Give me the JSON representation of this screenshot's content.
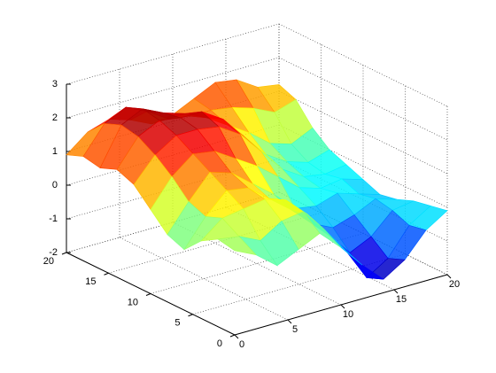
{
  "chart_data": {
    "type": "mesh",
    "x": [
      0,
      2,
      4,
      6,
      8,
      10,
      12,
      14,
      16,
      18,
      20
    ],
    "y": [
      0,
      2,
      4,
      6,
      8,
      10,
      12,
      14,
      16,
      18,
      20
    ],
    "z": [
      [
        0.5,
        0.2,
        -0.3,
        0.0,
        0.3,
        -0.3,
        -1.0,
        -1.6,
        -1.2,
        -0.5,
        -0.1
      ],
      [
        0.6,
        0.5,
        0.2,
        0.6,
        0.7,
        0.0,
        -0.8,
        -1.8,
        -1.4,
        -0.6,
        -0.2
      ],
      [
        0.3,
        0.8,
        0.9,
        1.0,
        0.8,
        0.2,
        -0.6,
        -1.3,
        -1.0,
        -0.4,
        -0.3
      ],
      [
        -0.2,
        0.6,
        1.2,
        1.1,
        0.6,
        0.1,
        -0.5,
        -0.8,
        -0.6,
        -0.3,
        -0.5
      ],
      [
        0.0,
        0.8,
        1.5,
        1.3,
        0.8,
        0.3,
        -0.3,
        -0.4,
        -0.2,
        -0.4,
        -0.6
      ],
      [
        0.5,
        1.3,
        1.8,
        1.7,
        1.3,
        0.9,
        0.4,
        -0.1,
        -0.3,
        -0.2,
        -0.4
      ],
      [
        1.0,
        1.7,
        2.1,
        2.1,
        2.0,
        1.6,
        0.9,
        0.2,
        -0.2,
        -0.3,
        -0.2
      ],
      [
        1.2,
        2.0,
        2.3,
        2.2,
        2.2,
        1.8,
        1.1,
        0.4,
        0.0,
        -0.2,
        0.0
      ],
      [
        1.0,
        2.1,
        2.4,
        2.1,
        1.9,
        1.6,
        1.2,
        0.8,
        0.3,
        0.1,
        0.4
      ],
      [
        1.1,
        1.9,
        2.2,
        1.9,
        1.5,
        1.4,
        1.4,
        1.3,
        1.1,
        0.8,
        1.0
      ],
      [
        0.9,
        1.4,
        1.6,
        1.4,
        1.1,
        1.2,
        1.5,
        1.8,
        1.7,
        1.3,
        1.2
      ]
    ],
    "colormap": "jet",
    "xlim": [
      0,
      20
    ],
    "xticks": [
      0,
      5,
      10,
      15,
      20
    ],
    "ylim": [
      0,
      20
    ],
    "yticks": [
      0,
      5,
      10,
      15,
      20
    ],
    "zlim": [
      -2,
      3
    ],
    "zticks": [
      -2,
      -1,
      0,
      1,
      2,
      3
    ],
    "grid": true
  }
}
